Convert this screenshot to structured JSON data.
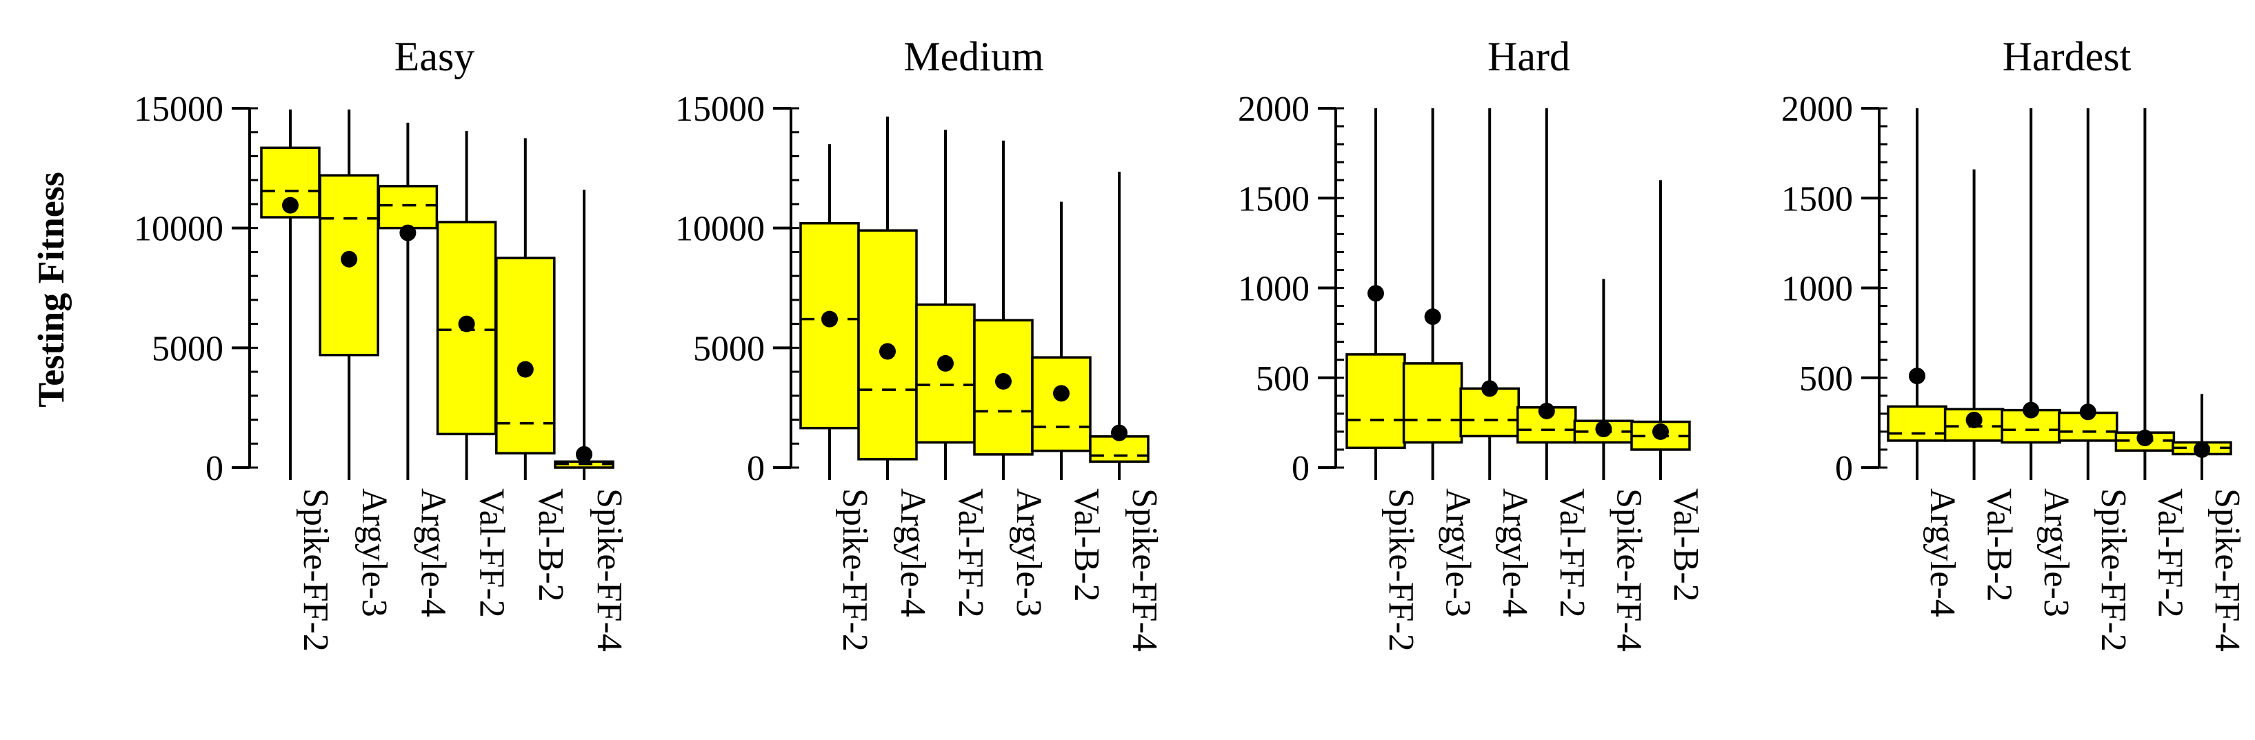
{
  "figure": {
    "ylabel": "Testing Fitness",
    "colors": {
      "box_fill": "#ffff00",
      "stroke": "#000000",
      "background": "#ffffff"
    }
  },
  "chart_data": [
    {
      "type": "box",
      "title": "Easy",
      "ylim": [
        0,
        15000
      ],
      "yticks": [
        0,
        5000,
        10000,
        15000
      ],
      "minor_step": 1000,
      "categories": [
        "Spike-FF-2",
        "Argyle-3",
        "Argyle-4",
        "Val-FF-2",
        "Val-B-2",
        "Spike-FF-4"
      ],
      "boxes": [
        {
          "min": 0,
          "q1": 10450,
          "median": 11550,
          "mean": 10950,
          "q3": 13350,
          "max": 14950
        },
        {
          "min": 0,
          "q1": 4700,
          "median": 10400,
          "mean": 8700,
          "q3": 12200,
          "max": 14950
        },
        {
          "min": 0,
          "q1": 10000,
          "median": 10950,
          "mean": 9800,
          "q3": 11750,
          "max": 14400
        },
        {
          "min": 0,
          "q1": 1400,
          "median": 5750,
          "mean": 6000,
          "q3": 10250,
          "max": 14050
        },
        {
          "min": 0,
          "q1": 600,
          "median": 1850,
          "mean": 4100,
          "q3": 8750,
          "max": 13750
        },
        {
          "min": 0,
          "q1": 0,
          "median": 150,
          "mean": 550,
          "q3": 250,
          "max": 11600
        }
      ]
    },
    {
      "type": "box",
      "title": "Medium",
      "ylim": [
        0,
        15000
      ],
      "yticks": [
        0,
        5000,
        10000,
        15000
      ],
      "minor_step": 1000,
      "categories": [
        "Spike-FF-2",
        "Argyle-4",
        "Val-FF-2",
        "Argyle-3",
        "Val-B-2",
        "Spike-FF-4"
      ],
      "boxes": [
        {
          "min": 0,
          "q1": 1650,
          "median": 6200,
          "mean": 6200,
          "q3": 10200,
          "max": 13500
        },
        {
          "min": 0,
          "q1": 350,
          "median": 3250,
          "mean": 4850,
          "q3": 9900,
          "max": 14650
        },
        {
          "min": 0,
          "q1": 1050,
          "median": 3450,
          "mean": 4350,
          "q3": 6800,
          "max": 14100
        },
        {
          "min": 0,
          "q1": 550,
          "median": 2350,
          "mean": 3600,
          "q3": 6150,
          "max": 13650
        },
        {
          "min": 0,
          "q1": 700,
          "median": 1700,
          "mean": 3100,
          "q3": 4600,
          "max": 11100
        },
        {
          "min": 0,
          "q1": 250,
          "median": 500,
          "mean": 1450,
          "q3": 1300,
          "max": 12350
        }
      ]
    },
    {
      "type": "box",
      "title": "Hard",
      "ylim": [
        0,
        2000
      ],
      "yticks": [
        0,
        500,
        1000,
        1500,
        2000
      ],
      "minor_step": 100,
      "categories": [
        "Spike-FF-2",
        "Argyle-3",
        "Argyle-4",
        "Val-FF-2",
        "Spike-FF-4",
        "Val-B-2"
      ],
      "boxes": [
        {
          "min": 0,
          "q1": 110,
          "median": 265,
          "mean": 970,
          "q3": 630,
          "max": 2000
        },
        {
          "min": 0,
          "q1": 140,
          "median": 265,
          "mean": 840,
          "q3": 580,
          "max": 2000
        },
        {
          "min": 0,
          "q1": 175,
          "median": 265,
          "mean": 440,
          "q3": 440,
          "max": 2000
        },
        {
          "min": 0,
          "q1": 140,
          "median": 210,
          "mean": 315,
          "q3": 335,
          "max": 2000
        },
        {
          "min": 0,
          "q1": 140,
          "median": 200,
          "mean": 215,
          "q3": 260,
          "max": 1050
        },
        {
          "min": 0,
          "q1": 100,
          "median": 175,
          "mean": 200,
          "q3": 255,
          "max": 1600
        }
      ]
    },
    {
      "type": "box",
      "title": "Hardest",
      "ylim": [
        0,
        2000
      ],
      "yticks": [
        0,
        500,
        1000,
        1500,
        2000
      ],
      "minor_step": 100,
      "categories": [
        "Argyle-4",
        "Val-B-2",
        "Argyle-3",
        "Spike-FF-2",
        "Val-FF-2",
        "Spike-FF-4"
      ],
      "boxes": [
        {
          "min": 0,
          "q1": 150,
          "median": 190,
          "mean": 510,
          "q3": 340,
          "max": 2000
        },
        {
          "min": 0,
          "q1": 150,
          "median": 230,
          "mean": 265,
          "q3": 325,
          "max": 1660
        },
        {
          "min": 0,
          "q1": 140,
          "median": 210,
          "mean": 320,
          "q3": 320,
          "max": 2000
        },
        {
          "min": 0,
          "q1": 150,
          "median": 200,
          "mean": 310,
          "q3": 305,
          "max": 2000
        },
        {
          "min": 0,
          "q1": 95,
          "median": 150,
          "mean": 165,
          "q3": 195,
          "max": 2000
        },
        {
          "min": 0,
          "q1": 75,
          "median": 110,
          "mean": 100,
          "q3": 140,
          "max": 410
        }
      ]
    }
  ]
}
